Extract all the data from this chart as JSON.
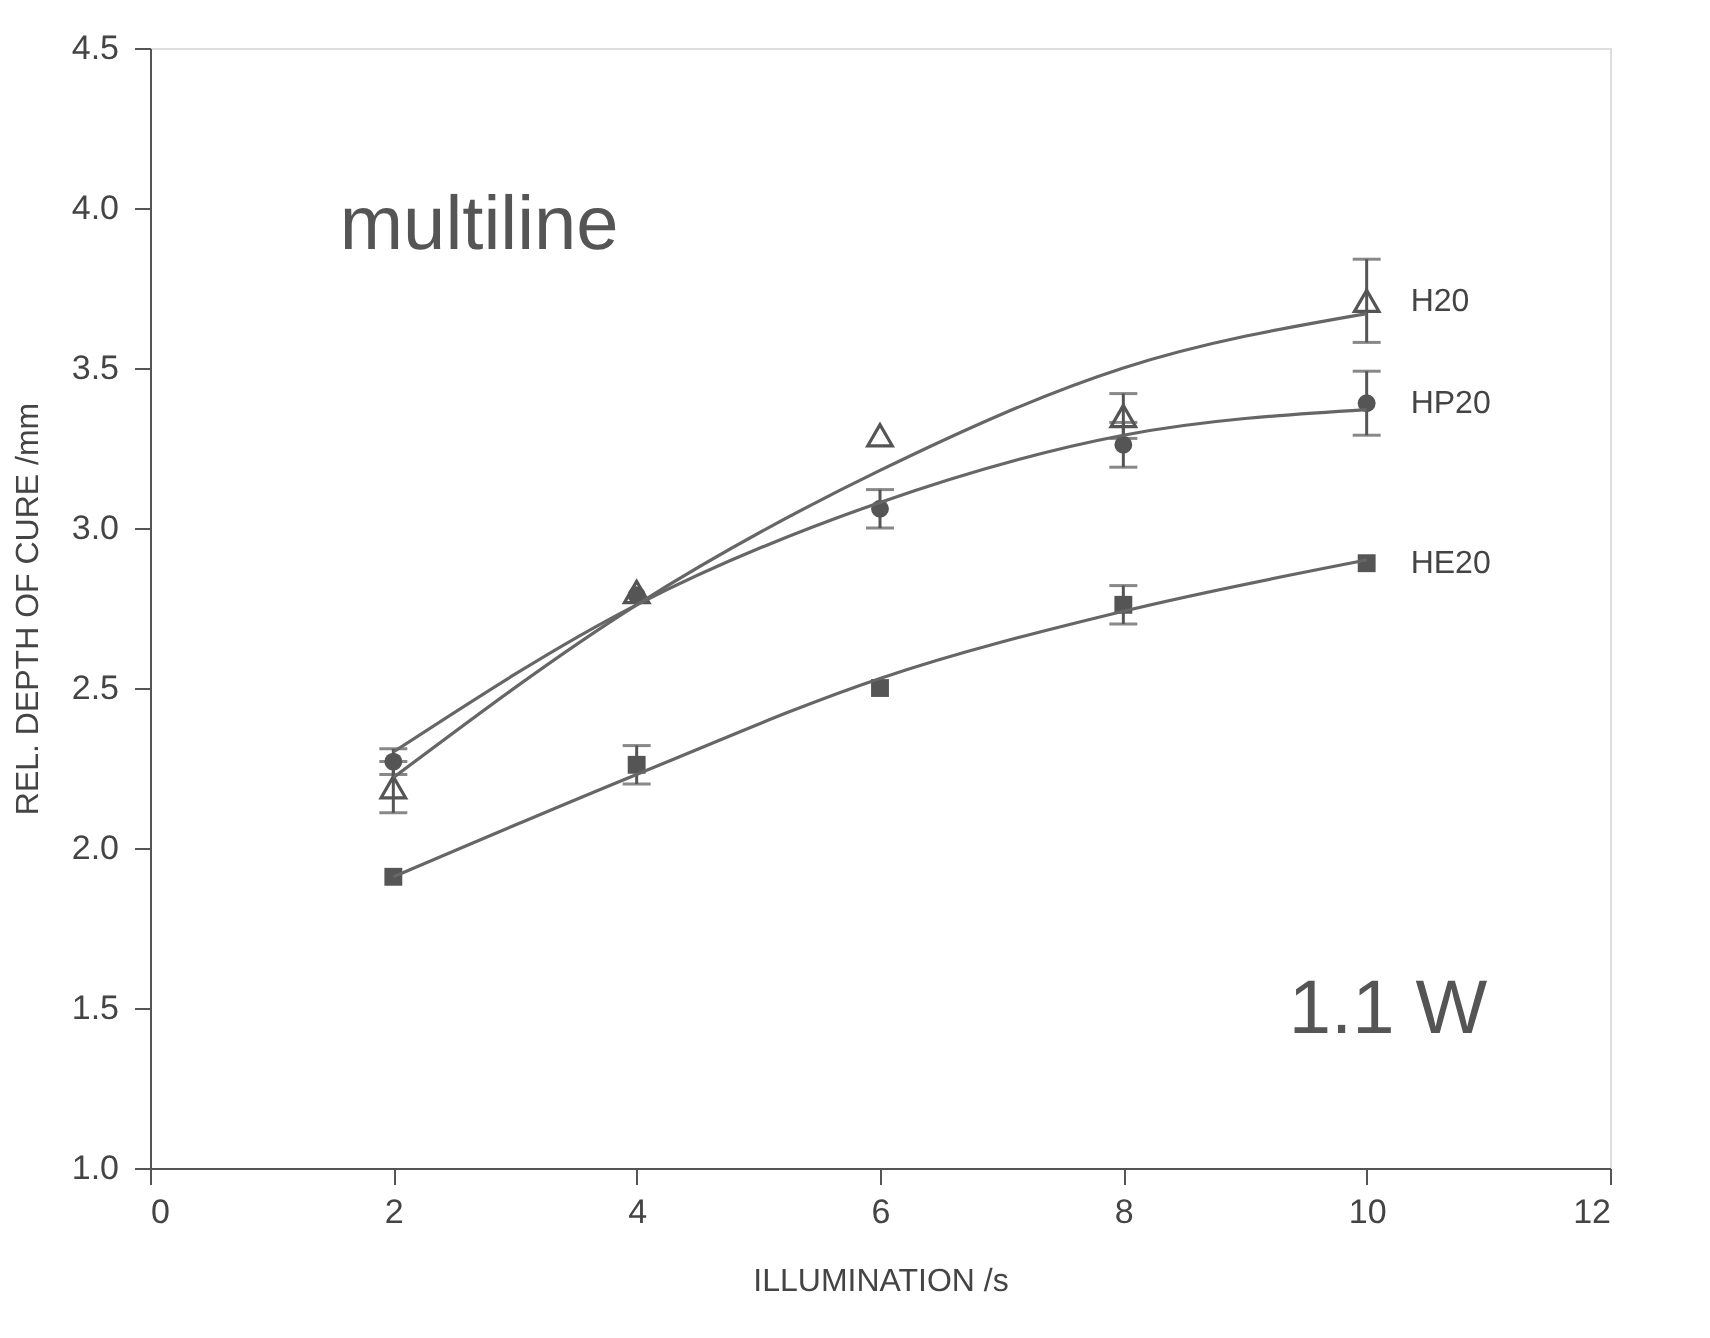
{
  "chart_data": {
    "type": "scatter",
    "xlabel": "ILLUMINATION /s",
    "ylabel": "REL. DEPTH OF CURE /mm",
    "xlim": [
      0,
      12
    ],
    "xticks": [
      0,
      2,
      4,
      6,
      8,
      10,
      12
    ],
    "ylim": [
      1.0,
      4.5
    ],
    "yticks": [
      {
        "value": 1.0,
        "label": "1.0"
      },
      1.5,
      {
        "value": 2.0,
        "label": "2.0"
      },
      2.5,
      {
        "value": 3.0,
        "label": "3.0"
      },
      3.5,
      {
        "value": 4.0,
        "label": "4.0"
      },
      4.5
    ],
    "grid": false,
    "annotations": [
      {
        "text": "multiline"
      },
      {
        "text": "1.1 W"
      }
    ],
    "series": [
      {
        "name": "H20",
        "marker": "triangle",
        "color": "#555555",
        "x": [
          2,
          4,
          6,
          8,
          10
        ],
        "values": [
          2.19,
          2.8,
          3.29,
          3.35,
          3.71
        ],
        "errors": [
          0.08,
          null,
          null,
          0.07,
          0.13
        ]
      },
      {
        "name": "HP20",
        "marker": "circle",
        "color": "#555555",
        "x": [
          2,
          4,
          6,
          8,
          10
        ],
        "values": [
          2.27,
          2.79,
          3.06,
          3.26,
          3.39
        ],
        "errors": [
          0.04,
          null,
          0.06,
          0.07,
          0.1
        ]
      },
      {
        "name": "HE20",
        "marker": "square",
        "color": "#555555",
        "x": [
          2,
          4,
          6,
          8,
          10
        ],
        "values": [
          1.91,
          2.26,
          2.5,
          2.76,
          2.89
        ],
        "errors": [
          null,
          0.06,
          null,
          0.06,
          null
        ]
      },
      {
        "type": "line",
        "line_style": "solid",
        "color": "#666666",
        "x": [
          2,
          4,
          6,
          8,
          10
        ],
        "values": [
          2.22,
          2.76,
          3.18,
          3.5,
          3.67
        ]
      },
      {
        "type": "line",
        "line_style": "solid",
        "color": "#666666",
        "x": [
          2,
          4,
          6,
          8,
          10
        ],
        "values": [
          2.3,
          2.76,
          3.08,
          3.29,
          3.37
        ]
      },
      {
        "type": "line",
        "line_style": "solid",
        "color": "#666666",
        "x": [
          2,
          4,
          6,
          8,
          10
        ],
        "values": [
          1.91,
          2.23,
          2.53,
          2.74,
          2.9
        ]
      }
    ]
  }
}
